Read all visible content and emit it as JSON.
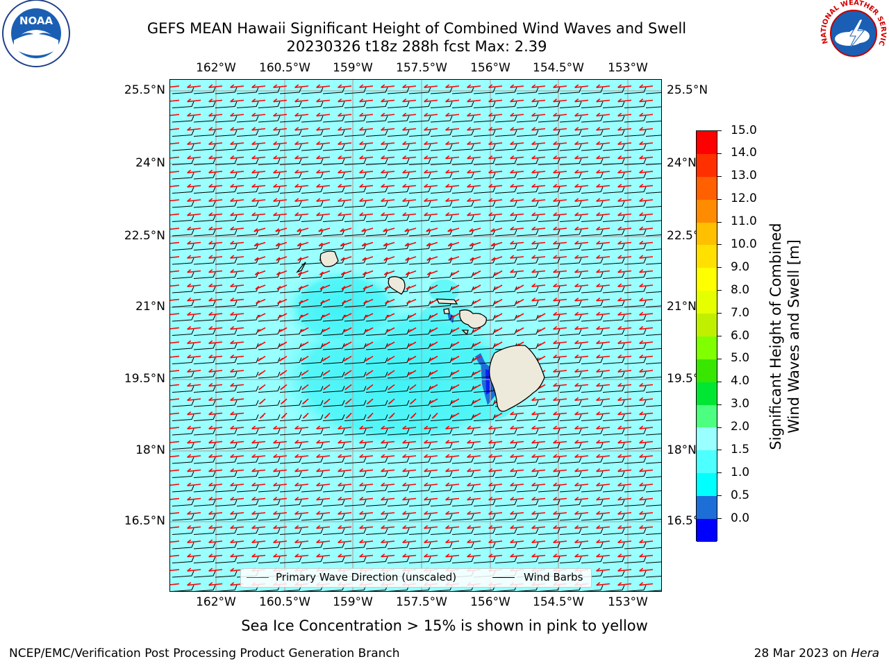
{
  "title": {
    "line1": "GEFS MEAN Hawaii Significant Height of Combined Wind Waves and Swell",
    "line2": "20230326 t18z 288h fcst   Max: 2.39"
  },
  "axes": {
    "lon_labels": [
      "162°W",
      "160.5°W",
      "159°W",
      "157.5°W",
      "156°W",
      "154.5°W",
      "153°W"
    ],
    "lat_labels": [
      "25.5°N",
      "24°N",
      "22.5°N",
      "21°N",
      "19.5°N",
      "18°N",
      "16.5°N"
    ]
  },
  "legend": {
    "wave_label": "Primary Wave Direction (unscaled)",
    "wind_label": "Wind Barbs",
    "wave_color": "#ff0000",
    "wind_color": "#000000"
  },
  "colorbar": {
    "title_line1": "Significant Height of Combined",
    "title_line2": "Wind Waves and Swell [m]",
    "labels": [
      "15.0",
      "14.0",
      "13.0",
      "12.0",
      "11.0",
      "10.0",
      "9.0",
      "8.0",
      "7.0",
      "6.0",
      "5.0",
      "4.0",
      "3.0",
      "2.0",
      "1.5",
      "1.0",
      "0.5",
      "0.0"
    ],
    "colors": [
      "#0000ff",
      "#1e6ed8",
      "#00ffff",
      "#4dffff",
      "#99ffff",
      "#4dff80",
      "#00e633",
      "#38e600",
      "#80ff00",
      "#c0f000",
      "#e6ff00",
      "#ffff00",
      "#ffe000",
      "#ffc000",
      "#ff8c00",
      "#ff6000",
      "#ff3000",
      "#ff0000"
    ]
  },
  "note": "Sea Ice Concentration > 15% is shown in pink to yellow",
  "footer": {
    "left": "NCEP/EMC/Verification Post Processing Product Generation Branch",
    "right_date": "28 Mar 2023 on ",
    "right_host": "Hera"
  },
  "logos": {
    "noaa_text": "NOAA",
    "nws_text": "NATIONAL WEATHER SERVICE"
  }
}
